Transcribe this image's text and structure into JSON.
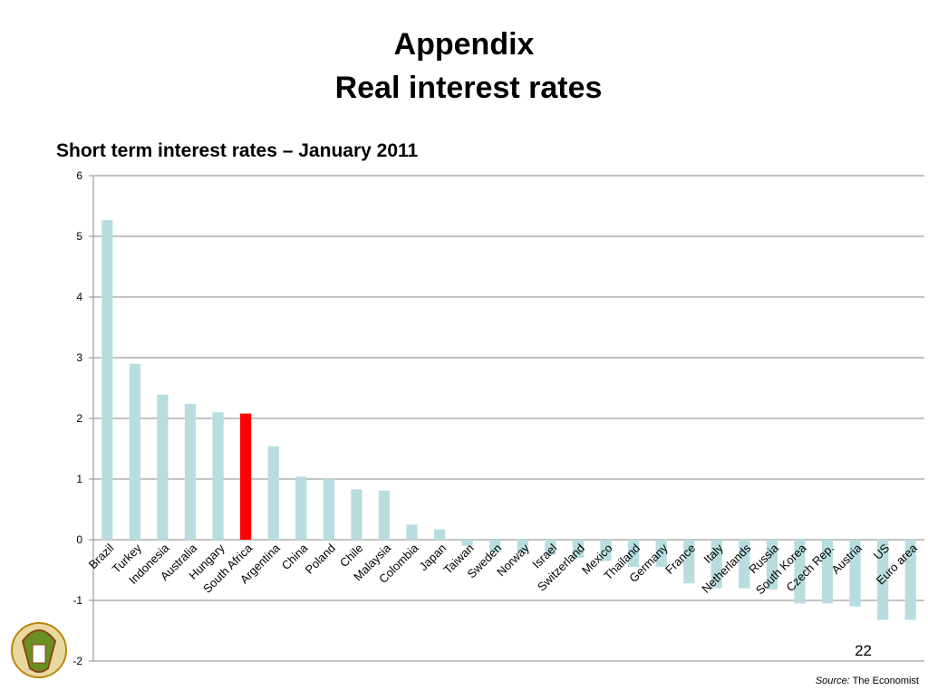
{
  "slide": {
    "title_lines": [
      "Appendix",
      "Real interest rates"
    ],
    "page_number": "22",
    "source_label": "Source:",
    "source_text": "The Economist"
  },
  "chart_data": {
    "type": "bar",
    "title": "Short term interest rates – January 2011",
    "categories": [
      "Brazil",
      "Turkey",
      "Indonesia",
      "Australia",
      "Hungary",
      "South Africa",
      "Argentina",
      "China",
      "Poland",
      "Chile",
      "Malaysia",
      "Colombia",
      "Japan",
      "Taiwan",
      "Sweden",
      "Norway",
      "Israel",
      "Switzerland",
      "Mexico",
      "Thailand",
      "Germany",
      "France",
      "Italy",
      "Netherlands",
      "Russia",
      "South Korea",
      "Czech Rep.",
      "Austria",
      "US",
      "Euro area"
    ],
    "values": [
      5.27,
      2.9,
      2.39,
      2.24,
      2.1,
      2.08,
      1.54,
      1.04,
      1.0,
      0.83,
      0.81,
      0.25,
      0.17,
      -0.1,
      -0.2,
      -0.2,
      -0.25,
      -0.3,
      -0.35,
      -0.45,
      -0.45,
      -0.72,
      -0.8,
      -0.8,
      -0.82,
      -1.05,
      -1.05,
      -1.1,
      -1.32,
      -1.32
    ],
    "color": "#b7dde0",
    "highlight": {
      "index": 5,
      "color": "#ff0000"
    },
    "ylim": [
      -2,
      6
    ],
    "yticks": [
      -2,
      -1,
      0,
      1,
      2,
      3,
      4,
      5,
      6
    ],
    "grid": true
  }
}
